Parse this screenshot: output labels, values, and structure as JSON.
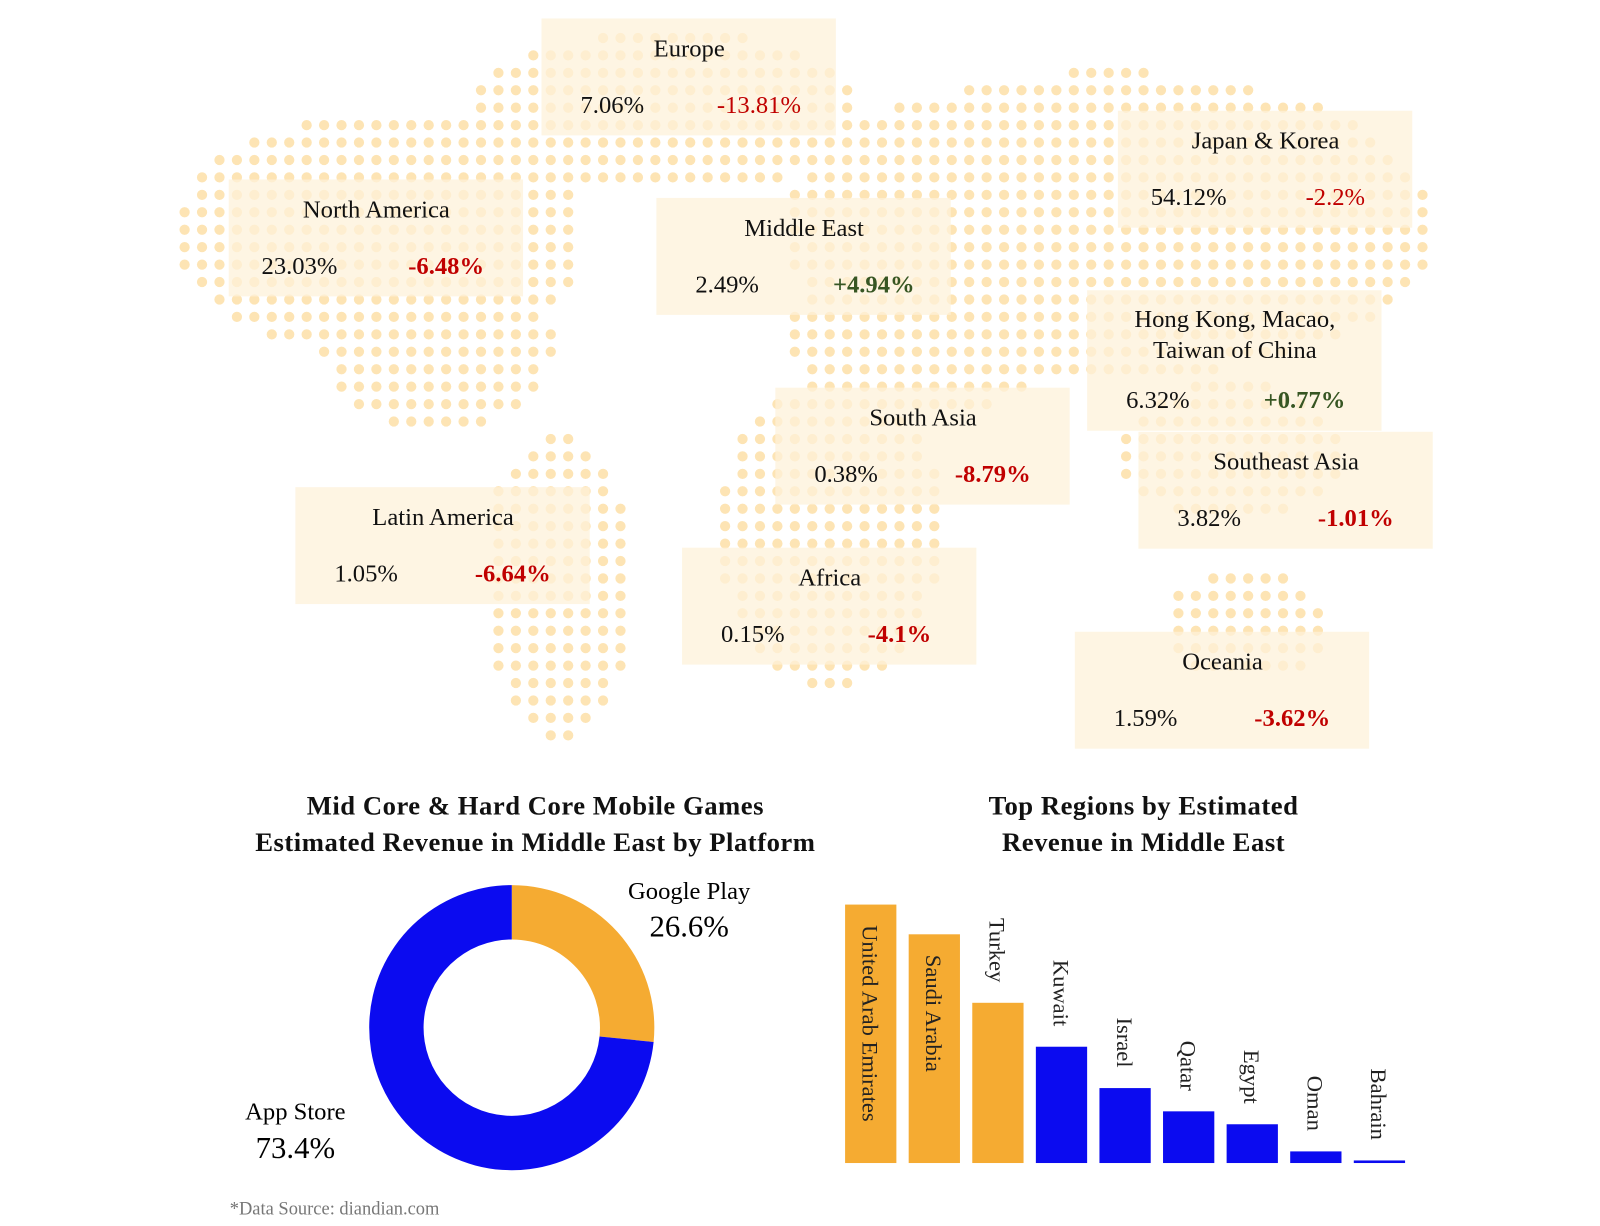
{
  "regions": [
    {
      "name": "Europe",
      "share": "7.06%",
      "change": "-13.81%",
      "change_color": "#c00000",
      "bold": false
    },
    {
      "name": "North America",
      "share": "23.03%",
      "change": "-6.48%",
      "change_color": "#c00000",
      "bold": true
    },
    {
      "name": "Middle East",
      "share": "2.49%",
      "change": "+4.94%",
      "change_color": "#375623",
      "bold": true
    },
    {
      "name": "Japan & Korea",
      "share": "54.12%",
      "change": "-2.2%",
      "change_color": "#c00000",
      "bold": false
    },
    {
      "name": "Hong Kong, Macao, Taiwan of China",
      "share": "6.32%",
      "change": "+0.77%",
      "change_color": "#375623",
      "bold": true
    },
    {
      "name": "South Asia",
      "share": "0.38%",
      "change": "-8.79%",
      "change_color": "#c00000",
      "bold": true
    },
    {
      "name": "Southeast Asia",
      "share": "3.82%",
      "change": "-1.01%",
      "change_color": "#c00000",
      "bold": true
    },
    {
      "name": "Latin America",
      "share": "1.05%",
      "change": "-6.64%",
      "change_color": "#c00000",
      "bold": true
    },
    {
      "name": "Africa",
      "share": "0.15%",
      "change": "-4.1%",
      "change_color": "#c00000",
      "bold": true
    },
    {
      "name": "Oceania",
      "share": "1.59%",
      "change": "-3.62%",
      "change_color": "#c00000",
      "bold": true
    }
  ],
  "chart_data": [
    {
      "type": "donut",
      "title": [
        "Mid Core & Hard Core Mobile Games",
        "Estimated Revenue in Middle East by Platform"
      ],
      "categories": [
        "Google Play",
        "App Store"
      ],
      "values": [
        26.6,
        73.4
      ],
      "value_labels": [
        "26.6%",
        "73.4%"
      ],
      "colors": [
        "#f5ab32",
        "#0b0bf0"
      ]
    },
    {
      "type": "bar",
      "title": [
        "Top Regions by Estimated",
        "Revenue in Middle East"
      ],
      "categories": [
        "United Arab Emirates",
        "Saudi Arabia",
        "Turkey",
        "Kuwait",
        "Israel",
        "Qatar",
        "Egypt",
        "Oman",
        "Bahrain"
      ],
      "values": [
        100,
        88.5,
        62,
        45,
        29,
        20,
        15,
        4.5,
        1
      ],
      "colors": [
        "#f5ab32",
        "#f5ab32",
        "#f5ab32",
        "#0b0bf0",
        "#0b0bf0",
        "#0b0bf0",
        "#0b0bf0",
        "#0b0bf0",
        "#0b0bf0"
      ],
      "ylim": [
        0,
        100
      ]
    }
  ],
  "source": "*Data Source: diandian.com"
}
